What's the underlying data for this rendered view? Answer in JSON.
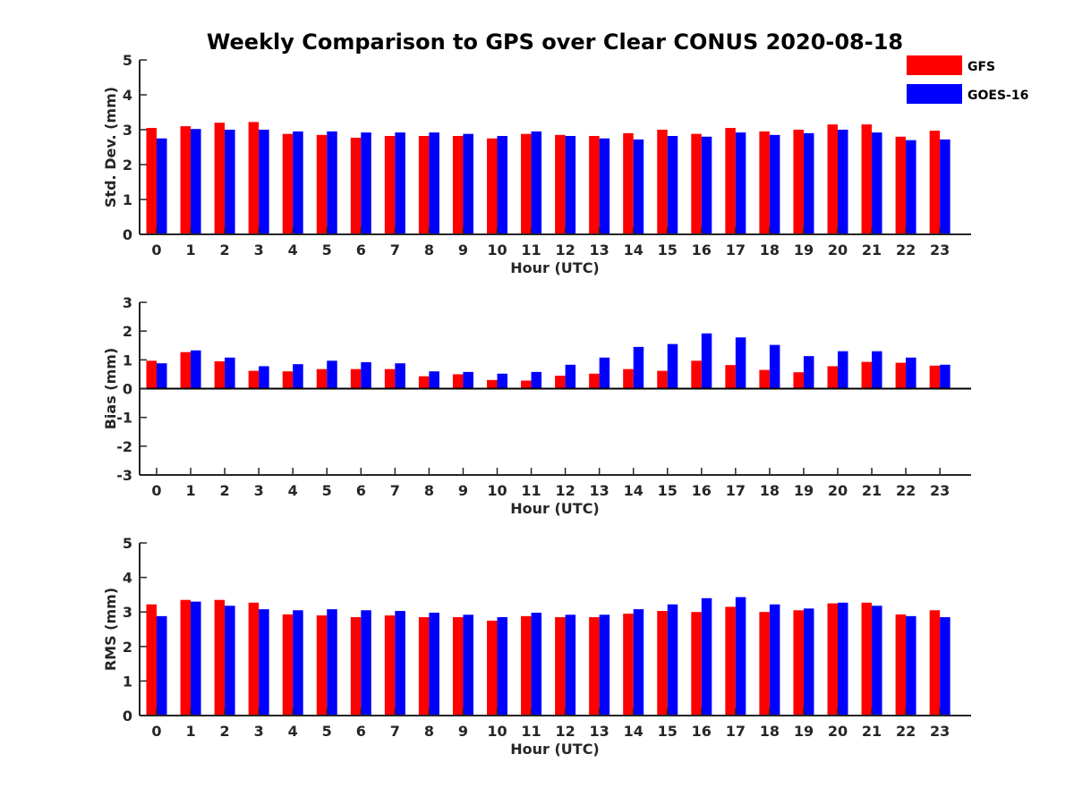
{
  "title": "Weekly Comparison to GPS over Clear CONUS 2020-08-18",
  "colors": {
    "GFS": "#ff0000",
    "GOES-16": "#0000ff",
    "axis": "#262626"
  },
  "legend": {
    "placement": "top-right",
    "items": [
      "GFS",
      "GOES-16"
    ]
  },
  "chart_data": [
    {
      "type": "bar",
      "ylabel": "Std. Dev. (mm)",
      "xlabel": "Hour (UTC)",
      "ylim": [
        0,
        5
      ],
      "yticks": [
        "0",
        "1",
        "2",
        "3",
        "4",
        "5"
      ],
      "categories": [
        "0",
        "1",
        "2",
        "3",
        "4",
        "5",
        "6",
        "7",
        "8",
        "9",
        "10",
        "11",
        "12",
        "13",
        "14",
        "15",
        "16",
        "17",
        "18",
        "19",
        "20",
        "21",
        "22",
        "23"
      ],
      "series": [
        {
          "name": "GFS",
          "values": [
            3.05,
            3.1,
            3.2,
            3.22,
            2.88,
            2.85,
            2.77,
            2.82,
            2.82,
            2.82,
            2.75,
            2.88,
            2.85,
            2.82,
            2.9,
            3.0,
            2.88,
            3.05,
            2.95,
            3.0,
            3.15,
            3.15,
            2.8,
            2.97
          ]
        },
        {
          "name": "GOES-16",
          "values": [
            2.75,
            3.02,
            3.0,
            3.0,
            2.95,
            2.95,
            2.92,
            2.92,
            2.92,
            2.88,
            2.82,
            2.95,
            2.82,
            2.75,
            2.72,
            2.82,
            2.8,
            2.92,
            2.85,
            2.9,
            3.0,
            2.92,
            2.7,
            2.72
          ]
        }
      ]
    },
    {
      "type": "bar",
      "ylabel": "Bias (mm)",
      "xlabel": "Hour (UTC)",
      "ylim": [
        -3,
        3
      ],
      "yticks": [
        "-3",
        "-2",
        "-1",
        "0",
        "1",
        "2",
        "3"
      ],
      "categories": [
        "0",
        "1",
        "2",
        "3",
        "4",
        "5",
        "6",
        "7",
        "8",
        "9",
        "10",
        "11",
        "12",
        "13",
        "14",
        "15",
        "16",
        "17",
        "18",
        "19",
        "20",
        "21",
        "22",
        "23"
      ],
      "series": [
        {
          "name": "GFS",
          "values": [
            0.97,
            1.27,
            0.95,
            0.62,
            0.6,
            0.68,
            0.68,
            0.68,
            0.43,
            0.5,
            0.3,
            0.28,
            0.45,
            0.52,
            0.68,
            0.62,
            0.97,
            0.82,
            0.65,
            0.57,
            0.78,
            0.93,
            0.9,
            0.8
          ]
        },
        {
          "name": "GOES-16",
          "values": [
            0.88,
            1.33,
            1.08,
            0.78,
            0.85,
            0.97,
            0.92,
            0.88,
            0.6,
            0.58,
            0.52,
            0.58,
            0.83,
            1.08,
            1.45,
            1.55,
            1.92,
            1.78,
            1.52,
            1.13,
            1.3,
            1.3,
            1.08,
            0.83
          ]
        }
      ]
    },
    {
      "type": "bar",
      "ylabel": "RMS (mm)",
      "xlabel": "Hour (UTC)",
      "ylim": [
        0,
        5
      ],
      "yticks": [
        "0",
        "1",
        "2",
        "3",
        "4",
        "5"
      ],
      "categories": [
        "0",
        "1",
        "2",
        "3",
        "4",
        "5",
        "6",
        "7",
        "8",
        "9",
        "10",
        "11",
        "12",
        "13",
        "14",
        "15",
        "16",
        "17",
        "18",
        "19",
        "20",
        "21",
        "22",
        "23"
      ],
      "series": [
        {
          "name": "GFS",
          "values": [
            3.22,
            3.35,
            3.35,
            3.27,
            2.93,
            2.9,
            2.85,
            2.9,
            2.85,
            2.85,
            2.75,
            2.88,
            2.85,
            2.85,
            2.95,
            3.03,
            3.0,
            3.15,
            3.0,
            3.05,
            3.25,
            3.27,
            2.93,
            3.05
          ]
        },
        {
          "name": "GOES-16",
          "values": [
            2.88,
            3.3,
            3.18,
            3.08,
            3.05,
            3.08,
            3.05,
            3.03,
            2.98,
            2.92,
            2.85,
            2.98,
            2.92,
            2.92,
            3.08,
            3.22,
            3.4,
            3.43,
            3.22,
            3.1,
            3.27,
            3.18,
            2.88,
            2.85
          ]
        }
      ]
    }
  ]
}
